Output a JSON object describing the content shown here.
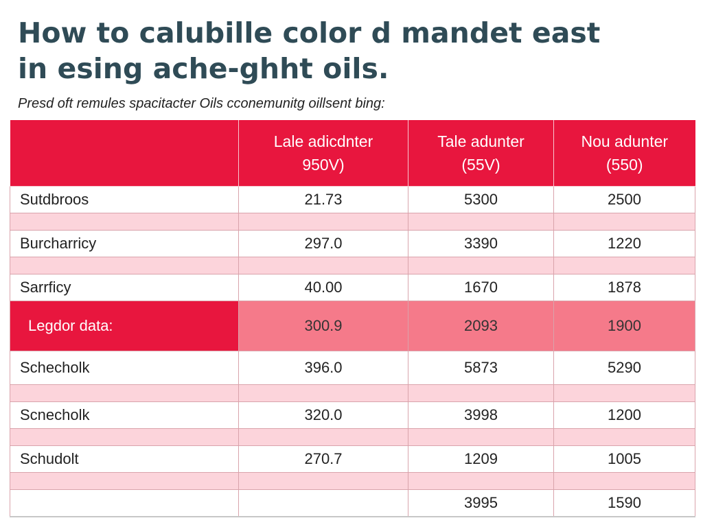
{
  "title_lines": [
    "How to calubille color d mandet east",
    "in esing ache-ghht oils."
  ],
  "subtitle": "Presd oft remules spacitacter Oils cconemunitg oillsent bing:",
  "colors": {
    "header": "#e8163e",
    "stripe": "#fcd4db",
    "highlight": "#f57a8a",
    "title": "#2f4b56"
  },
  "chart_data": {
    "type": "table",
    "columns": [
      {
        "line1": "",
        "line2": ""
      },
      {
        "line1": "Lale adicdnter",
        "line2": "950V)"
      },
      {
        "line1": "Tale adunter",
        "line2": "(55V)"
      },
      {
        "line1": "Nou adunter",
        "line2": "(550)"
      }
    ],
    "rows": [
      {
        "label": "Sutdbroos",
        "values": [
          "21.73",
          "5300",
          "2500"
        ]
      },
      {
        "label": "Burcharricy",
        "values": [
          "297.0",
          "3390",
          "1220"
        ]
      },
      {
        "label": "Sarrficy",
        "values": [
          "40.00",
          "1670",
          "1878"
        ]
      },
      {
        "label": "Legdor data:",
        "values": [
          "300.9",
          "2093",
          "1900"
        ]
      },
      {
        "label": "Schecholk",
        "values": [
          "396.0",
          "5873",
          "5290"
        ]
      },
      {
        "label": "Scnecholk",
        "values": [
          "320.0",
          "3998",
          "1200"
        ]
      },
      {
        "label": "Schudolt",
        "values": [
          "270.7",
          "1209",
          "1005"
        ]
      },
      {
        "label": "",
        "values": [
          "",
          "3995",
          "1590"
        ]
      }
    ]
  }
}
